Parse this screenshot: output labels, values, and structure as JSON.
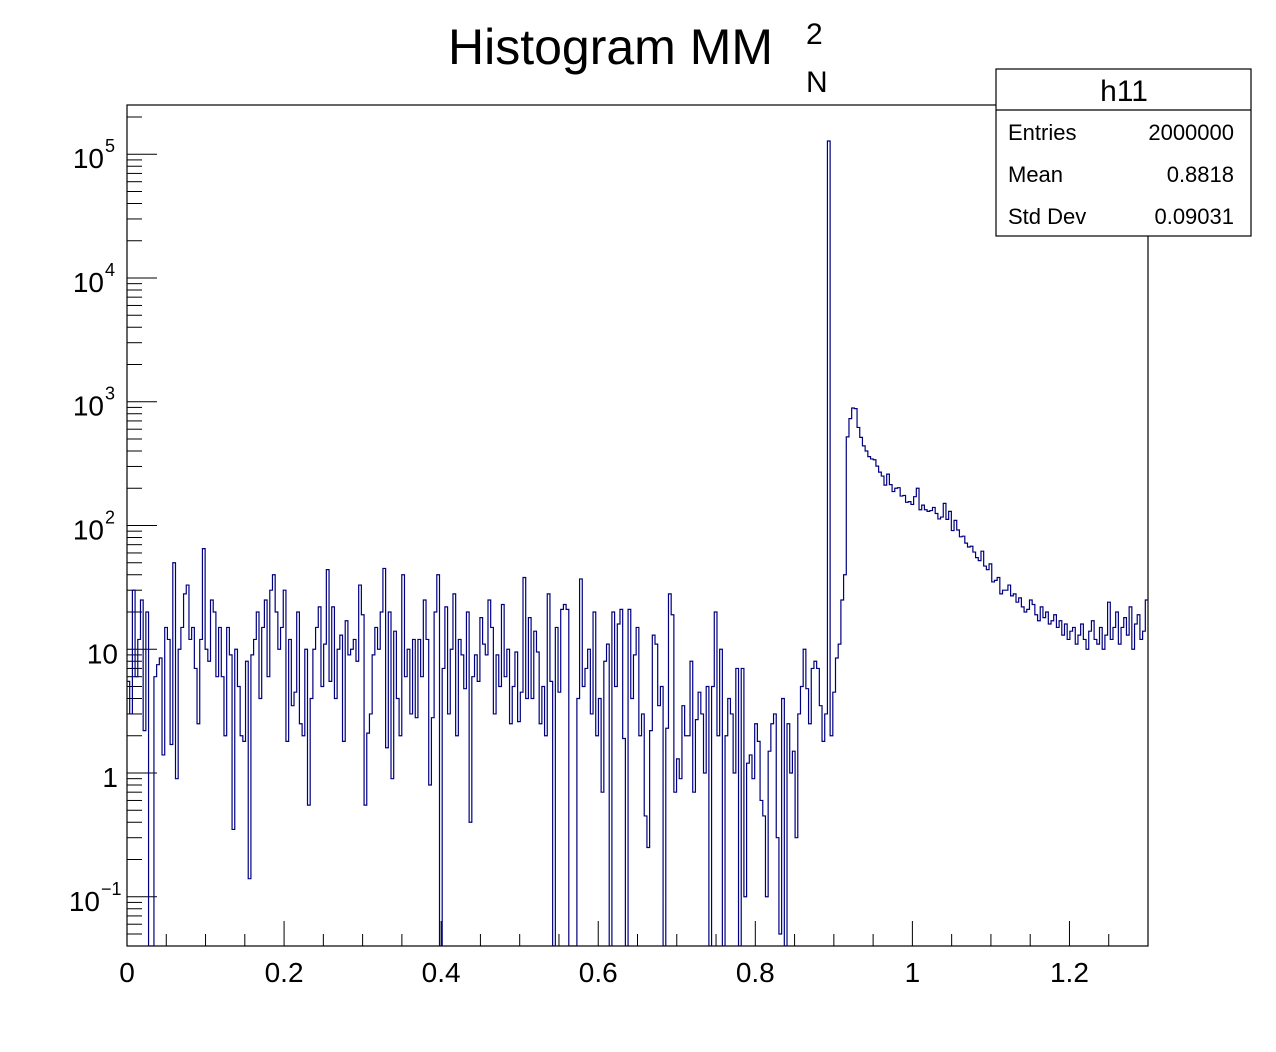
{
  "chart_data": {
    "type": "histogram",
    "title": {
      "main": "Histogram MM",
      "superscript": "2",
      "subscript": "N"
    },
    "xlabel": "",
    "ylabel": "",
    "xlim": [
      0,
      1.3
    ],
    "ylim": [
      0.04,
      250000
    ],
    "y_scale": "log",
    "grid": false,
    "line_color": "#000080",
    "x_ticks": [
      {
        "value": 0,
        "label": "0"
      },
      {
        "value": 0.2,
        "label": "0.2"
      },
      {
        "value": 0.4,
        "label": "0.4"
      },
      {
        "value": 0.6,
        "label": "0.6"
      },
      {
        "value": 0.8,
        "label": "0.8"
      },
      {
        "value": 1.0,
        "label": "1"
      },
      {
        "value": 1.2,
        "label": "1.2"
      }
    ],
    "y_ticks": [
      {
        "value": 0.1,
        "base": "10",
        "exp": "−1"
      },
      {
        "value": 1,
        "base": "1",
        "exp": ""
      },
      {
        "value": 10,
        "base": "10",
        "exp": ""
      },
      {
        "value": 100,
        "base": "10",
        "exp": "2"
      },
      {
        "value": 1000,
        "base": "10",
        "exp": "3"
      },
      {
        "value": 10000,
        "base": "10",
        "exp": "4"
      },
      {
        "value": 100000,
        "base": "10",
        "exp": "5"
      }
    ],
    "bins": {
      "x_start": 0,
      "x_end": 1.3,
      "counts": [
        5.5,
        3.0,
        30.0,
        6.0,
        12.0,
        25.0,
        2.2,
        20.0,
        0.0,
        0.0,
        6.0,
        7.5,
        8.5,
        1.4,
        15.0,
        12.0,
        1.7,
        50.0,
        0.9,
        10.0,
        15.0,
        28.0,
        33.0,
        12.0,
        15.0,
        7.0,
        2.5,
        12.0,
        65.0,
        10.0,
        8.0,
        25.0,
        20.0,
        6.0,
        15.0,
        6.0,
        2.0,
        15.0,
        9.0,
        0.35,
        10.0,
        5.0,
        2.0,
        1.8,
        8.0,
        0.14,
        9.0,
        12.0,
        20.0,
        4.0,
        15.0,
        25.0,
        6.0,
        30.0,
        40.0,
        20.0,
        10.0,
        15.0,
        30.0,
        1.8,
        12.0,
        3.5,
        4.5,
        20.0,
        2.5,
        2.0,
        10.0,
        0.55,
        4.0,
        10.0,
        15.0,
        22.0,
        5.0,
        11.0,
        44.0,
        5.5,
        22.0,
        4.0,
        10.0,
        13.0,
        1.8,
        17.0,
        9.0,
        10.0,
        12.0,
        8.0,
        33.0,
        19.0,
        0.55,
        2.1,
        3.0,
        9.0,
        15.0,
        10.0,
        20.0,
        45.0,
        1.6,
        20.0,
        0.9,
        14.0,
        4.0,
        2.0,
        40.0,
        6.0,
        10.0,
        3.0,
        12.0,
        2.8,
        12.0,
        6.0,
        25.0,
        12.0,
        0.8,
        2.8,
        20.0,
        40.0,
        0.03,
        7.0,
        22.0,
        3.0,
        10.0,
        28.0,
        2.0,
        12.0,
        9.0,
        4.8,
        20.0,
        0.4,
        6.0,
        9.0,
        5.5,
        18.0,
        11.0,
        9.0,
        25.0,
        15.0,
        3.0,
        9.0,
        5.0,
        23.0,
        6.0,
        10.0,
        2.5,
        5.0,
        9.5,
        2.6,
        4.5,
        38.0,
        4.0,
        18.0,
        4.0,
        14.0,
        9.5,
        2.5,
        5.0,
        2.0,
        28.0,
        5.5,
        0.03,
        15.0,
        4.5,
        21.0,
        23.0,
        21.0,
        0.03,
        0.03,
        0.03,
        4.0,
        37.0,
        5.0,
        7.0,
        10.0,
        3.0,
        20.0,
        2.0,
        4.0,
        0.7,
        8.0,
        11.0,
        0.03,
        20.0,
        5.0,
        16.0,
        21.0,
        1.9,
        0.03,
        21.0,
        4.0,
        9.0,
        15.0,
        2.0,
        3.0,
        0.45,
        0.25,
        2.2,
        13.0,
        11.0,
        3.5,
        5.0,
        0.03,
        2.3,
        28.0,
        19.0,
        0.7,
        1.3,
        0.9,
        3.5,
        2.0,
        2.0,
        8.0,
        0.7,
        2.7,
        4.5,
        3.0,
        1.0,
        5.0,
        0.03,
        5.0,
        20.0,
        2.0,
        10.0,
        0.03,
        2.0,
        4.0,
        3.0,
        1.0,
        7.0,
        0.03,
        7.0,
        0.1,
        1.2,
        1.4,
        0.9,
        2.5,
        1.8,
        0.6,
        0.45,
        0.1,
        1.5,
        2.5,
        3.0,
        0.3,
        0.05,
        4.0,
        0.04,
        2.5,
        1.0,
        1.5,
        0.3,
        3.0,
        5.0,
        10.0,
        4.8,
        2.5,
        7.0,
        8.0,
        7.0,
        3.5,
        1.8,
        3.0,
        128000.0,
        2.0,
        4.5,
        8.5,
        11.0,
        25.0,
        40.0,
        520.0,
        730.0,
        890.0,
        880.0,
        620.0,
        515.0,
        440.0,
        400.0,
        360.0,
        345.0,
        340.0,
        302.0,
        270.0,
        251.0,
        212.0,
        260.0,
        214.0,
        188.0,
        200.0,
        202.0,
        173.0,
        175.0,
        154.0,
        156.0,
        148.0,
        171.0,
        200.0,
        134.0,
        146.0,
        134.0,
        130.0,
        132.0,
        140.0,
        125.0,
        113.0,
        117.0,
        151.0,
        112.0,
        130.0,
        91.0,
        110.0,
        92.0,
        81.0,
        82.0,
        72.0,
        67.0,
        68.0,
        61.0,
        55.0,
        52.0,
        62.0,
        47.0,
        44.0,
        49.0,
        35.0,
        36.0,
        38.0,
        28.0,
        30.0,
        30.0,
        33.0,
        27.0,
        28.0,
        24.0,
        26.0,
        22.0,
        20.0,
        21.0,
        25.0,
        23.0,
        19.0,
        17.0,
        22.0,
        18.0,
        20.0,
        16.0,
        17.0,
        19.0,
        15.0,
        17.0,
        13.0,
        16.0,
        12.0,
        14.0,
        15.0,
        11.0,
        13.0,
        16.0,
        12.0,
        10.0,
        14.0,
        17.0,
        12.0,
        11.0,
        15.0,
        10.0,
        13.0,
        24.0,
        12.0,
        15.0,
        20.0,
        11.0,
        15.0,
        18.0,
        13.0,
        22.0,
        10.0,
        16.0,
        19.0,
        12.0,
        14.0,
        25.0
      ]
    }
  },
  "stats_box": {
    "name": "h11",
    "rows": [
      {
        "label": "Entries",
        "value": "2000000"
      },
      {
        "label": "Mean",
        "value": "0.8818"
      },
      {
        "label": "Std Dev",
        "value": "0.09031"
      }
    ]
  }
}
